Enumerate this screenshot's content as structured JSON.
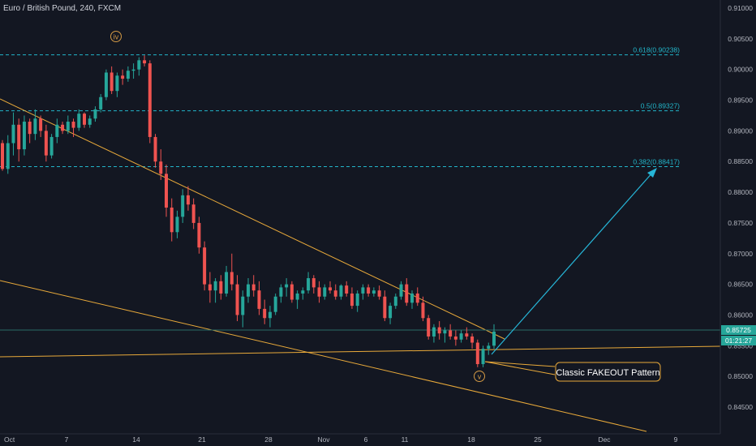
{
  "chart_data": {
    "type": "candlestick",
    "title": "Euro / British Pound, 240, FXCM",
    "x_ticks": [
      "Oct",
      "7",
      "14",
      "21",
      "28",
      "Nov",
      "6",
      "11",
      "18",
      "25",
      "Dec",
      "9"
    ],
    "y_ticks": [
      "0.91000",
      "0.90500",
      "0.90000",
      "0.89500",
      "0.89000",
      "0.88500",
      "0.88000",
      "0.87500",
      "0.87000",
      "0.86500",
      "0.86000",
      "0.85500",
      "0.85000",
      "0.84500"
    ],
    "ylim": [
      0.8405,
      0.9112
    ],
    "price_label": "0.85725",
    "countdown_label": "01:21:27",
    "current_price": 0.85725,
    "fib_levels": [
      {
        "label": "0.618(0.90238)",
        "value": 0.90238
      },
      {
        "label": "0.5(0.89327)",
        "value": 0.89327
      },
      {
        "label": "0.382(0.88417)",
        "value": 0.88417
      }
    ],
    "wave_labels": [
      "iv",
      "v"
    ],
    "annotation": "Classic FAKEOUT Pattern",
    "path_points": [
      [
        0.888,
        0.8885,
        0.8835,
        0.8838
      ],
      [
        0.8838,
        0.8893,
        0.883,
        0.888
      ],
      [
        0.888,
        0.893,
        0.886,
        0.891
      ],
      [
        0.891,
        0.892,
        0.885,
        0.887
      ],
      [
        0.887,
        0.8925,
        0.886,
        0.8915
      ],
      [
        0.8915,
        0.892,
        0.888,
        0.8895
      ],
      [
        0.8895,
        0.8935,
        0.8885,
        0.892
      ],
      [
        0.892,
        0.8925,
        0.889,
        0.89
      ],
      [
        0.89,
        0.891,
        0.885,
        0.886
      ],
      [
        0.886,
        0.8895,
        0.8855,
        0.889
      ],
      [
        0.889,
        0.892,
        0.888,
        0.891
      ],
      [
        0.891,
        0.8915,
        0.8895,
        0.89
      ],
      [
        0.89,
        0.8925,
        0.8895,
        0.8915
      ],
      [
        0.8915,
        0.892,
        0.889,
        0.8905
      ],
      [
        0.8905,
        0.8935,
        0.89,
        0.8928
      ],
      [
        0.8928,
        0.893,
        0.8905,
        0.891
      ],
      [
        0.891,
        0.8925,
        0.8905,
        0.892
      ],
      [
        0.892,
        0.894,
        0.8915,
        0.8935
      ],
      [
        0.8935,
        0.896,
        0.893,
        0.8955
      ],
      [
        0.8955,
        0.9,
        0.895,
        0.8995
      ],
      [
        0.8995,
        0.9005,
        0.896,
        0.8965
      ],
      [
        0.8965,
        0.8995,
        0.8955,
        0.899
      ],
      [
        0.899,
        0.9,
        0.8975,
        0.8985
      ],
      [
        0.8985,
        0.9005,
        0.898,
        0.8998
      ],
      [
        0.8998,
        0.901,
        0.8985,
        0.9
      ],
      [
        0.9,
        0.902,
        0.899,
        0.9015
      ],
      [
        0.9015,
        0.9023,
        0.9005,
        0.901
      ],
      [
        0.901,
        0.9015,
        0.888,
        0.889
      ],
      [
        0.889,
        0.8895,
        0.884,
        0.885
      ],
      [
        0.885,
        0.887,
        0.882,
        0.883
      ],
      [
        0.883,
        0.8845,
        0.876,
        0.8775
      ],
      [
        0.8775,
        0.879,
        0.872,
        0.8735
      ],
      [
        0.8735,
        0.877,
        0.8725,
        0.876
      ],
      [
        0.876,
        0.8805,
        0.875,
        0.8795
      ],
      [
        0.8795,
        0.881,
        0.877,
        0.878
      ],
      [
        0.878,
        0.879,
        0.874,
        0.875
      ],
      [
        0.875,
        0.876,
        0.87,
        0.871
      ],
      [
        0.871,
        0.872,
        0.864,
        0.865
      ],
      [
        0.865,
        0.867,
        0.862,
        0.864
      ],
      [
        0.864,
        0.866,
        0.862,
        0.8655
      ],
      [
        0.8655,
        0.8665,
        0.8625,
        0.8635
      ],
      [
        0.8635,
        0.868,
        0.863,
        0.867
      ],
      [
        0.867,
        0.87,
        0.864,
        0.865
      ],
      [
        0.865,
        0.8665,
        0.859,
        0.86
      ],
      [
        0.86,
        0.864,
        0.858,
        0.863
      ],
      [
        0.863,
        0.866,
        0.862,
        0.865
      ],
      [
        0.865,
        0.8665,
        0.863,
        0.864
      ],
      [
        0.864,
        0.8655,
        0.86,
        0.861
      ],
      [
        0.861,
        0.8625,
        0.8585,
        0.8595
      ],
      [
        0.8595,
        0.8615,
        0.858,
        0.8605
      ],
      [
        0.8605,
        0.8635,
        0.86,
        0.863
      ],
      [
        0.863,
        0.865,
        0.862,
        0.8645
      ],
      [
        0.8645,
        0.866,
        0.863,
        0.865
      ],
      [
        0.865,
        0.8655,
        0.862,
        0.8625
      ],
      [
        0.8625,
        0.864,
        0.861,
        0.8635
      ],
      [
        0.8635,
        0.8645,
        0.8625,
        0.864
      ],
      [
        0.864,
        0.867,
        0.8635,
        0.866
      ],
      [
        0.866,
        0.8665,
        0.8635,
        0.8645
      ],
      [
        0.8645,
        0.8655,
        0.862,
        0.863
      ],
      [
        0.863,
        0.865,
        0.8625,
        0.8645
      ],
      [
        0.8645,
        0.8655,
        0.8635,
        0.864
      ],
      [
        0.864,
        0.865,
        0.8625,
        0.863
      ],
      [
        0.863,
        0.865,
        0.8625,
        0.8648
      ],
      [
        0.8648,
        0.8655,
        0.863,
        0.8635
      ],
      [
        0.8635,
        0.8645,
        0.861,
        0.8615
      ],
      [
        0.8615,
        0.864,
        0.8605,
        0.8635
      ],
      [
        0.8635,
        0.865,
        0.8625,
        0.8645
      ],
      [
        0.8645,
        0.865,
        0.863,
        0.8635
      ],
      [
        0.8635,
        0.8645,
        0.863,
        0.864
      ],
      [
        0.864,
        0.8648,
        0.8625,
        0.863
      ],
      [
        0.863,
        0.864,
        0.859,
        0.8595
      ],
      [
        0.8595,
        0.862,
        0.8585,
        0.8615
      ],
      [
        0.8615,
        0.8635,
        0.861,
        0.863
      ],
      [
        0.863,
        0.8655,
        0.8625,
        0.865
      ],
      [
        0.865,
        0.866,
        0.8615,
        0.862
      ],
      [
        0.862,
        0.864,
        0.861,
        0.8635
      ],
      [
        0.8635,
        0.8645,
        0.8615,
        0.862
      ],
      [
        0.862,
        0.863,
        0.859,
        0.8595
      ],
      [
        0.8595,
        0.86,
        0.856,
        0.8565
      ],
      [
        0.8565,
        0.8585,
        0.8555,
        0.858
      ],
      [
        0.858,
        0.859,
        0.856,
        0.857
      ],
      [
        0.857,
        0.858,
        0.8555,
        0.8575
      ],
      [
        0.8575,
        0.8585,
        0.856,
        0.8565
      ],
      [
        0.8565,
        0.8575,
        0.855,
        0.856
      ],
      [
        0.856,
        0.8575,
        0.8555,
        0.857
      ],
      [
        0.857,
        0.858,
        0.856,
        0.8565
      ],
      [
        0.8565,
        0.857,
        0.8545,
        0.8555
      ],
      [
        0.8555,
        0.856,
        0.8515,
        0.852
      ],
      [
        0.852,
        0.855,
        0.8515,
        0.8545
      ],
      [
        0.8545,
        0.8555,
        0.8535,
        0.855
      ],
      [
        0.855,
        0.8585,
        0.8545,
        0.8573
      ]
    ]
  }
}
